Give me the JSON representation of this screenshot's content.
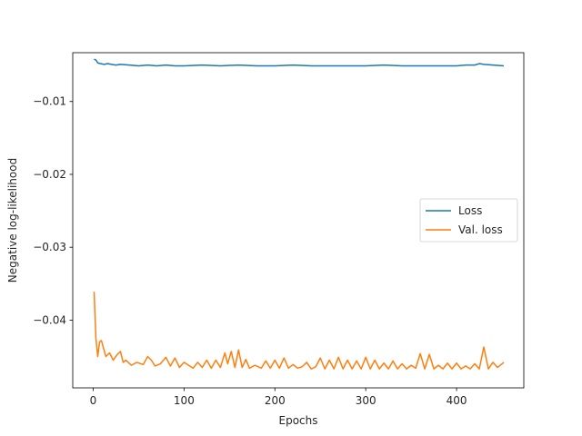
{
  "chart_data": {
    "type": "line",
    "title": "",
    "xlabel": "Epochs",
    "ylabel": "Negative log-likelihood",
    "xlim": [
      -22.5,
      474
    ],
    "ylim": [
      -0.0493,
      -0.0033
    ],
    "xticks": [
      0,
      100,
      200,
      300,
      400
    ],
    "xtick_labels": [
      "0",
      "100",
      "200",
      "300",
      "400"
    ],
    "yticks": [
      -0.01,
      -0.02,
      -0.03,
      -0.04
    ],
    "ytick_labels": [
      "−0.01",
      "−0.02",
      "−0.03",
      "−0.04"
    ],
    "grid": false,
    "legend": "center-right",
    "series": [
      {
        "name": "Loss",
        "color": "#1f77b4",
        "x": [
          1,
          3,
          5,
          8,
          12,
          16,
          20,
          25,
          30,
          40,
          50,
          60,
          70,
          80,
          90,
          100,
          120,
          140,
          160,
          180,
          200,
          220,
          240,
          260,
          280,
          300,
          320,
          340,
          360,
          380,
          400,
          410,
          420,
          425,
          430,
          440,
          452
        ],
        "values": [
          -0.0042,
          -0.0043,
          -0.0047,
          -0.0048,
          -0.0049,
          -0.0048,
          -0.0049,
          -0.005,
          -0.0049,
          -0.005,
          -0.0051,
          -0.005,
          -0.0051,
          -0.005,
          -0.0051,
          -0.0051,
          -0.005,
          -0.0051,
          -0.005,
          -0.0051,
          -0.0051,
          -0.005,
          -0.0051,
          -0.0051,
          -0.0051,
          -0.0051,
          -0.005,
          -0.0051,
          -0.0051,
          -0.0051,
          -0.0051,
          -0.005,
          -0.005,
          -0.0048,
          -0.0049,
          -0.005,
          -0.0051
        ]
      },
      {
        "name": "Val. loss",
        "color": "#ff7f0e",
        "x": [
          1,
          3,
          5,
          7,
          9,
          11,
          14,
          18,
          22,
          26,
          30,
          33,
          36,
          42,
          48,
          55,
          60,
          64,
          68,
          74,
          80,
          85,
          90,
          95,
          100,
          105,
          110,
          115,
          120,
          125,
          130,
          135,
          140,
          145,
          148,
          152,
          156,
          160,
          164,
          168,
          172,
          178,
          185,
          190,
          195,
          200,
          205,
          210,
          215,
          220,
          225,
          230,
          235,
          240,
          245,
          250,
          255,
          260,
          265,
          270,
          275,
          280,
          285,
          290,
          295,
          300,
          305,
          310,
          315,
          320,
          325,
          330,
          335,
          340,
          345,
          350,
          355,
          360,
          365,
          370,
          375,
          380,
          385,
          390,
          395,
          400,
          405,
          410,
          415,
          420,
          425,
          430,
          435,
          440,
          445,
          452
        ],
        "values": [
          -0.0361,
          -0.0425,
          -0.045,
          -0.043,
          -0.0428,
          -0.0437,
          -0.045,
          -0.0445,
          -0.0455,
          -0.0448,
          -0.0443,
          -0.0458,
          -0.0455,
          -0.0462,
          -0.0458,
          -0.0461,
          -0.045,
          -0.0455,
          -0.0463,
          -0.046,
          -0.0451,
          -0.0463,
          -0.0452,
          -0.0465,
          -0.0458,
          -0.0462,
          -0.0466,
          -0.0458,
          -0.0465,
          -0.0455,
          -0.0466,
          -0.0455,
          -0.0465,
          -0.0445,
          -0.046,
          -0.0443,
          -0.0465,
          -0.0441,
          -0.0465,
          -0.0454,
          -0.0466,
          -0.0462,
          -0.0466,
          -0.0456,
          -0.0466,
          -0.0455,
          -0.0466,
          -0.0452,
          -0.0466,
          -0.0461,
          -0.0466,
          -0.0464,
          -0.0458,
          -0.0467,
          -0.0464,
          -0.0452,
          -0.0467,
          -0.0455,
          -0.0467,
          -0.0451,
          -0.0467,
          -0.0455,
          -0.0467,
          -0.0456,
          -0.0467,
          -0.0451,
          -0.0467,
          -0.0455,
          -0.0467,
          -0.0459,
          -0.0467,
          -0.0456,
          -0.0467,
          -0.046,
          -0.0467,
          -0.0462,
          -0.0466,
          -0.0446,
          -0.0467,
          -0.0447,
          -0.0467,
          -0.0462,
          -0.0467,
          -0.0459,
          -0.0467,
          -0.0459,
          -0.0467,
          -0.0463,
          -0.0467,
          -0.046,
          -0.0467,
          -0.0437,
          -0.0467,
          -0.0458,
          -0.0465,
          -0.0458
        ]
      }
    ]
  }
}
